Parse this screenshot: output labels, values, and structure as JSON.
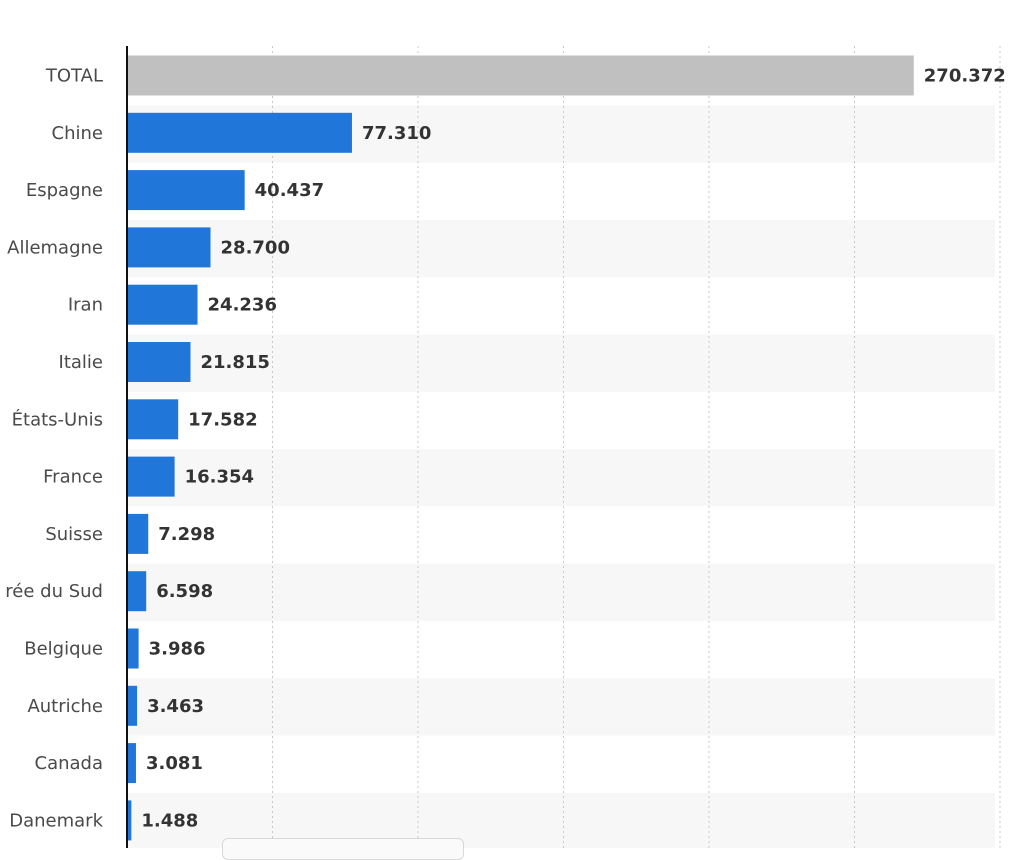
{
  "chart_data": {
    "type": "bar",
    "orientation": "horizontal",
    "categories": [
      "TOTAL",
      "Chine",
      "Espagne",
      "Allemagne",
      "Iran",
      "Italie",
      "États-Unis",
      "France",
      "Suisse",
      "rée du Sud",
      "Belgique",
      "Autriche",
      "Canada",
      "Danemark"
    ],
    "values": [
      270372,
      77310,
      40437,
      28700,
      24236,
      21815,
      17582,
      16354,
      7298,
      6598,
      3986,
      3463,
      3081,
      1488
    ],
    "value_labels": [
      "270.372",
      "77.310",
      "40.437",
      "28.700",
      "24.236",
      "21.815",
      "17.582",
      "16.354",
      "7.298",
      "6.598",
      "3.986",
      "3.463",
      "3.081",
      "1.488"
    ],
    "xlim": [
      0,
      300000
    ],
    "grid": "vertical dotted",
    "colors": {
      "highlight": "#c0c0c0",
      "bar": "#2176d9"
    },
    "highlight_category": "TOTAL"
  }
}
